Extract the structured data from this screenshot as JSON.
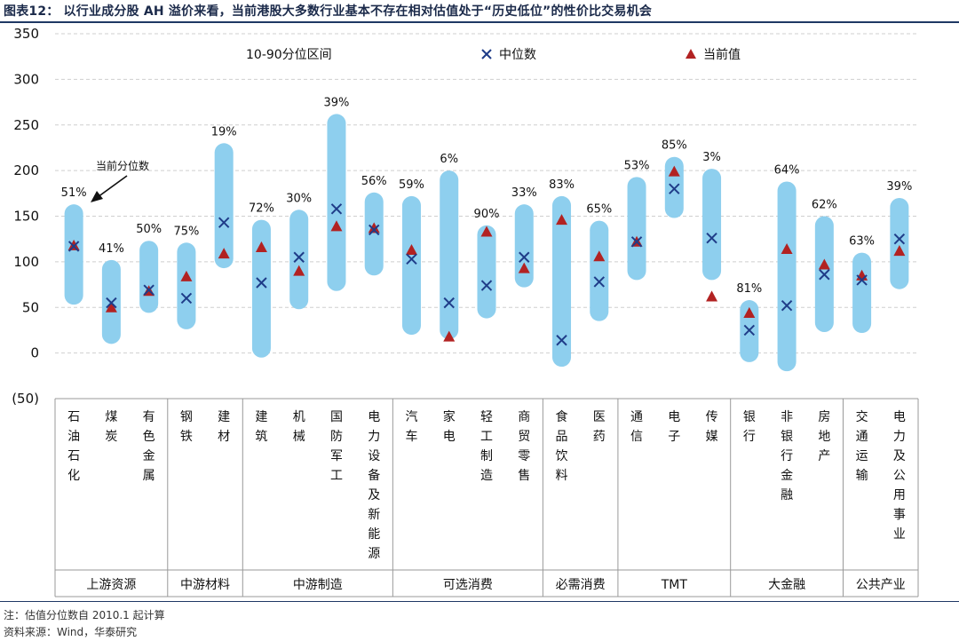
{
  "header": {
    "title": "图表12：  以行业成分股 AH 溢价来看，当前港股大多数行业基本不存在相对估值处于“历史低位”的性价比交易机会"
  },
  "footer": {
    "note": "注：估值分位数自 2010.1 起计算",
    "source": "资料来源：Wind，华泰研究"
  },
  "colors": {
    "range_bar": "#8ecfee",
    "median_marker": "#1f3c88",
    "current_marker": "#b22222",
    "title_rule": "#1f3864"
  },
  "chart_data": {
    "type": "range-bar with markers",
    "title": "",
    "xlabel": "",
    "ylabel": "",
    "ylim": [
      -50,
      350
    ],
    "yticks": [
      -50,
      0,
      50,
      100,
      150,
      200,
      250,
      300,
      350
    ],
    "ytick_labels": [
      "(50)",
      "0",
      "50",
      "100",
      "150",
      "200",
      "250",
      "300",
      "350"
    ],
    "grid": true,
    "legend": {
      "position": "top",
      "items": [
        {
          "key": "range",
          "label": "10-90分位区间"
        },
        {
          "key": "median",
          "label": "中位数"
        },
        {
          "key": "current",
          "label": "当前值"
        }
      ]
    },
    "annotation": {
      "text": "当前分位数",
      "points_to": "石油石化"
    },
    "categories": [
      {
        "name": "石油石化",
        "low": 53,
        "high": 163,
        "median": 117,
        "current": 118,
        "percentile": "51%"
      },
      {
        "name": "煤炭",
        "low": 10,
        "high": 102,
        "median": 55,
        "current": 50,
        "percentile": "41%"
      },
      {
        "name": "有色金属",
        "low": 44,
        "high": 123,
        "median": 69,
        "current": 68,
        "percentile": "50%"
      },
      {
        "name": "钢铁",
        "low": 26,
        "high": 121,
        "median": 60,
        "current": 84,
        "percentile": "75%"
      },
      {
        "name": "建材",
        "low": 93,
        "high": 230,
        "median": 143,
        "current": 109,
        "percentile": "19%"
      },
      {
        "name": "建筑",
        "low": -5,
        "high": 146,
        "median": 77,
        "current": 116,
        "percentile": "72%"
      },
      {
        "name": "机械",
        "low": 48,
        "high": 157,
        "median": 105,
        "current": 90,
        "percentile": "30%"
      },
      {
        "name": "国防军工",
        "low": 68,
        "high": 262,
        "median": 158,
        "current": 139,
        "percentile": "39%"
      },
      {
        "name": "电力设备及新能源",
        "low": 85,
        "high": 176,
        "median": 135,
        "current": 137,
        "percentile": "56%"
      },
      {
        "name": "汽车",
        "low": 20,
        "high": 172,
        "median": 103,
        "current": 113,
        "percentile": "59%"
      },
      {
        "name": "家电",
        "low": 15,
        "high": 200,
        "median": 55,
        "current": 18,
        "percentile": "6%"
      },
      {
        "name": "轻工制造",
        "low": 38,
        "high": 140,
        "median": 74,
        "current": 133,
        "percentile": "90%"
      },
      {
        "name": "商贸零售",
        "low": 72,
        "high": 163,
        "median": 105,
        "current": 93,
        "percentile": "33%"
      },
      {
        "name": "食品饮料",
        "low": -15,
        "high": 172,
        "median": 14,
        "current": 146,
        "percentile": "83%"
      },
      {
        "name": "医药",
        "low": 35,
        "high": 145,
        "median": 78,
        "current": 106,
        "percentile": "65%"
      },
      {
        "name": "通信",
        "low": 80,
        "high": 193,
        "median": 122,
        "current": 122,
        "percentile": "53%"
      },
      {
        "name": "电子",
        "low": 148,
        "high": 215,
        "median": 180,
        "current": 199,
        "percentile": "85%"
      },
      {
        "name": "传媒",
        "low": 80,
        "high": 202,
        "median": 126,
        "current": 62,
        "percentile": "3%"
      },
      {
        "name": "银行",
        "low": -10,
        "high": 58,
        "median": 25,
        "current": 44,
        "percentile": "81%"
      },
      {
        "name": "非银行金融",
        "low": -20,
        "high": 188,
        "median": 52,
        "current": 114,
        "percentile": "64%"
      },
      {
        "name": "房地产",
        "low": 23,
        "high": 150,
        "median": 86,
        "current": 97,
        "percentile": "62%"
      },
      {
        "name": "交通运输",
        "low": 22,
        "high": 110,
        "median": 80,
        "current": 85,
        "percentile": "63%"
      },
      {
        "name": "电力及公用事业",
        "low": 70,
        "high": 170,
        "median": 125,
        "current": 112,
        "percentile": "39%"
      }
    ],
    "groups": [
      {
        "name": "上游资源",
        "count": 3
      },
      {
        "name": "中游材料",
        "count": 2
      },
      {
        "name": "中游制造",
        "count": 4
      },
      {
        "name": "可选消费",
        "count": 4
      },
      {
        "name": "必需消费",
        "count": 2
      },
      {
        "name": "TMT",
        "count": 3
      },
      {
        "name": "大金融",
        "count": 3
      },
      {
        "name": "公共产业",
        "count": 2
      }
    ]
  }
}
